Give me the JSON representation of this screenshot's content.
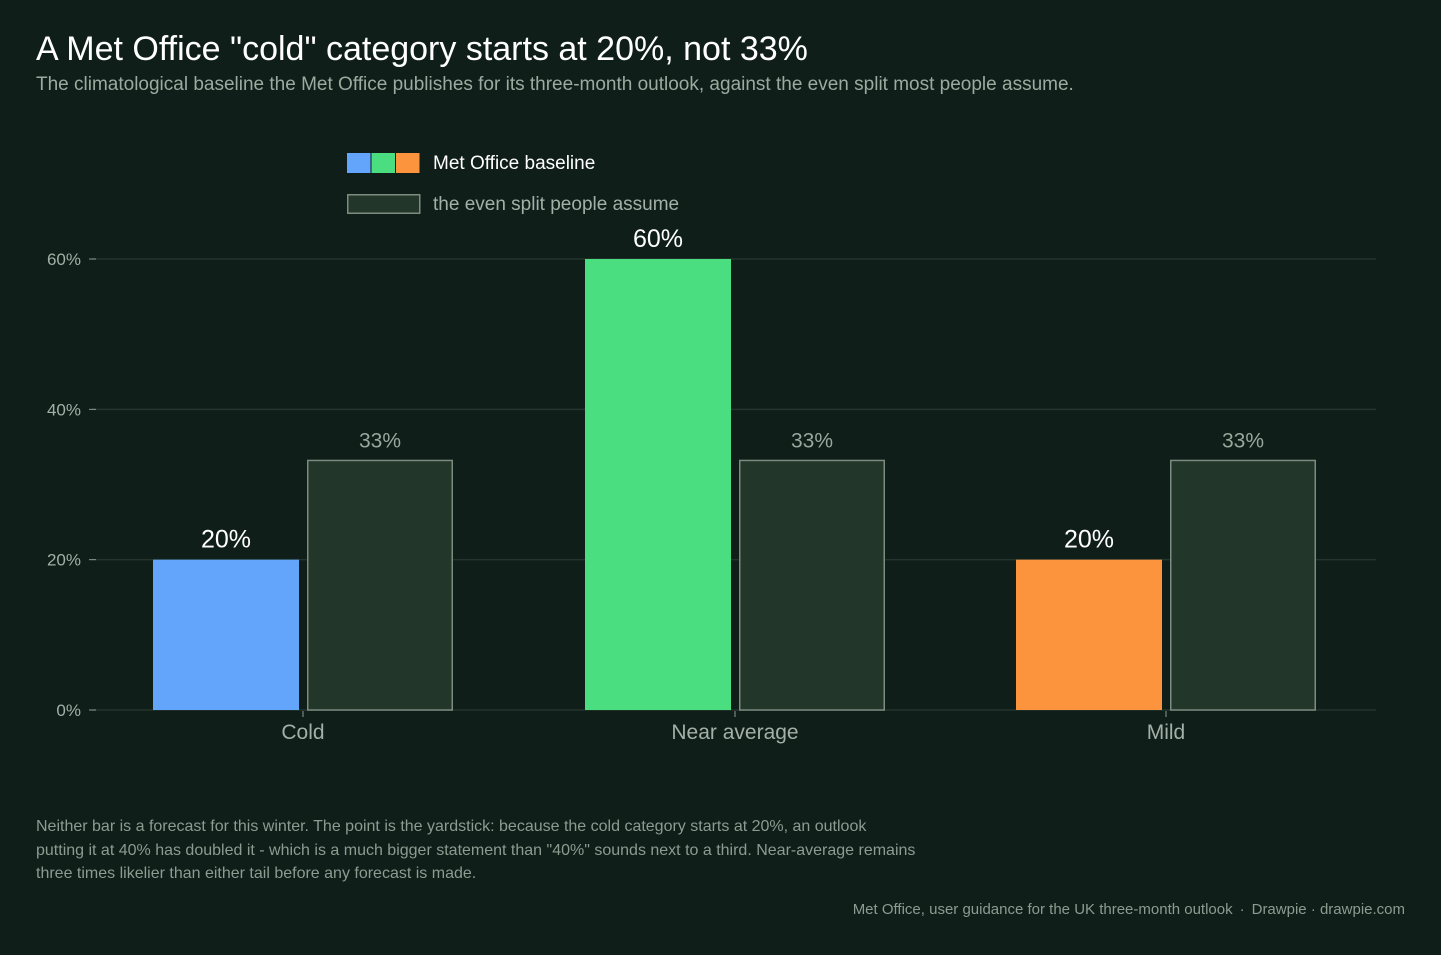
{
  "title": "A Met Office \"cold\" category starts at 20%, not 33%",
  "subtitle": "The climatological baseline the Met Office publishes for its three-month outlook, against the even split most people assume.",
  "footnote": "Neither bar is a forecast for this winter. The point is the yardstick: because the cold category starts at 20%, an outlook putting it at 40% has doubled it - which is a much bigger statement than \"40%\" sounds next to a third. Near-average remains three times likelier than either tail before any forecast is made.",
  "source": {
    "text": "Met Office, user guidance for the UK three-month outlook",
    "separator": "·",
    "credit": "Drawpie · drawpie.com"
  },
  "colors": {
    "background": "#0f1e19",
    "cold": "#62a5fa",
    "near_average": "#4ade80",
    "mild": "#fb943d",
    "even_fill": "#223629",
    "even_stroke": "#7c8c81",
    "grid": "#24352d"
  },
  "chart_data": {
    "type": "bar",
    "categories": [
      "Cold",
      "Near average",
      "Mild"
    ],
    "series": [
      {
        "name": "Met Office baseline",
        "values": [
          20,
          60,
          20
        ],
        "labels": [
          "20%",
          "60%",
          "20%"
        ],
        "colors": [
          "#62a5fa",
          "#4ade80",
          "#fb943d"
        ]
      },
      {
        "name": "the even split people assume",
        "values": [
          33.3,
          33.3,
          33.3
        ],
        "labels": [
          "33%",
          "33%",
          "33%"
        ],
        "fill": "#223629",
        "stroke": "#7c8c81"
      }
    ],
    "yticks": [
      0,
      20,
      40,
      60
    ],
    "ytick_labels": [
      "0%",
      "20%",
      "40%",
      "60%"
    ],
    "ylim": [
      0,
      60
    ],
    "grid": true,
    "legend_position": "top-left"
  }
}
